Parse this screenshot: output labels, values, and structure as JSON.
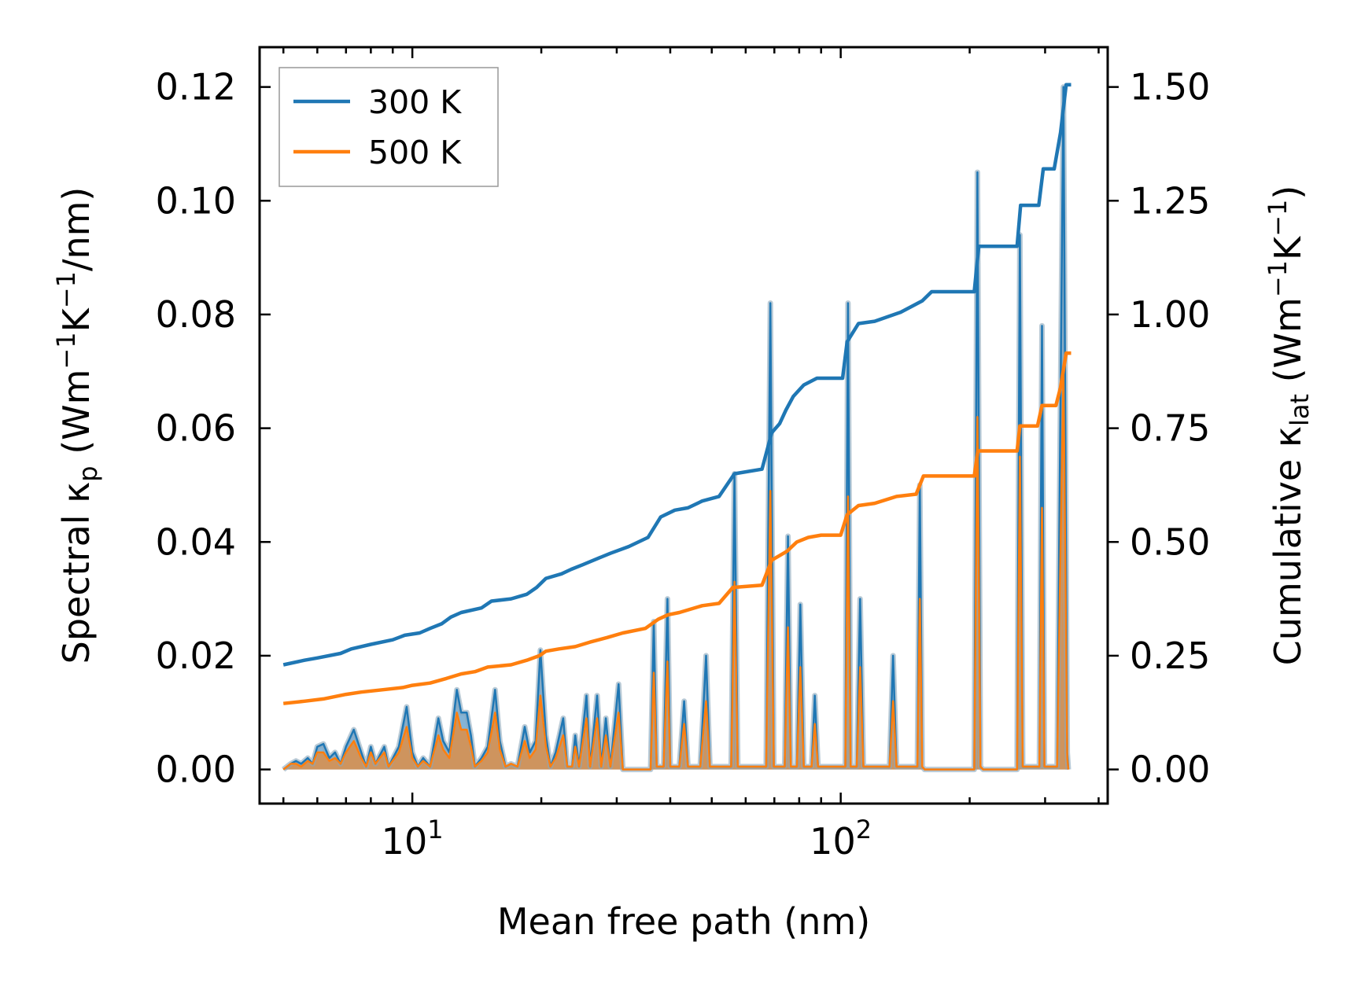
{
  "chart_data": {
    "type": "line",
    "xlabel": "Mean free path (nm)",
    "xscale": "log",
    "xlim": [
      4.4,
      420
    ],
    "ylabel_left": {
      "prefix": "Spectral κ",
      "sub": "p",
      "units": " (Wm",
      "sup1": "−1",
      "mid": "K",
      "sup2": "−1",
      "tail": "/nm)"
    },
    "ylabel_right": {
      "prefix": "Cumulative κ",
      "sub": "lat",
      "units": " (Wm",
      "sup1": "−1",
      "mid": "K",
      "sup2": "−1",
      "tail": ")"
    },
    "ylim_left": [
      -0.006,
      0.127
    ],
    "ylim_right": [
      -0.075,
      1.5875
    ],
    "x_ticks": [
      {
        "value": 10,
        "base": "10",
        "exp": "1"
      },
      {
        "value": 100,
        "base": "10",
        "exp": "2"
      }
    ],
    "y_left_ticks": [
      "0.00",
      "0.02",
      "0.04",
      "0.06",
      "0.08",
      "0.10",
      "0.12"
    ],
    "y_right_ticks": [
      "0.00",
      "0.25",
      "0.50",
      "0.75",
      "1.00",
      "1.25",
      "1.50"
    ],
    "legend": {
      "location": "upper-left",
      "entries": [
        "300 K",
        "500 K"
      ]
    },
    "colors": {
      "s300": "#1f77b4",
      "s500": "#ff7f0e",
      "fill": "#b99a6b",
      "fillEdge": "#9aa3a8"
    },
    "spectral_300": [
      [
        5.0,
        0
      ],
      [
        5.2,
        0.001
      ],
      [
        5.35,
        0.0015
      ],
      [
        5.5,
        0.001
      ],
      [
        5.7,
        0.002
      ],
      [
        5.85,
        0.001
      ],
      [
        6.0,
        0.004
      ],
      [
        6.2,
        0.0045
      ],
      [
        6.4,
        0.002
      ],
      [
        6.6,
        0.003
      ],
      [
        6.8,
        0.001
      ],
      [
        7.0,
        0.004
      ],
      [
        7.3,
        0.007
      ],
      [
        7.6,
        0.003
      ],
      [
        7.8,
        0.0005
      ],
      [
        8.0,
        0.004
      ],
      [
        8.2,
        0.001
      ],
      [
        8.6,
        0.004
      ],
      [
        8.8,
        0.0005
      ],
      [
        9.3,
        0.004
      ],
      [
        9.7,
        0.011
      ],
      [
        10.0,
        0.003
      ],
      [
        10.3,
        0.0005
      ],
      [
        10.6,
        0.002
      ],
      [
        11.0,
        0.0005
      ],
      [
        11.5,
        0.009
      ],
      [
        11.8,
        0.005
      ],
      [
        12.2,
        0.003
      ],
      [
        12.7,
        0.014
      ],
      [
        13.0,
        0.01
      ],
      [
        13.4,
        0.01
      ],
      [
        13.7,
        0.006
      ],
      [
        14.0,
        0.0005
      ],
      [
        14.5,
        0.002
      ],
      [
        15.0,
        0.004
      ],
      [
        15.6,
        0.014
      ],
      [
        16.0,
        0.005
      ],
      [
        16.5,
        0.0005
      ],
      [
        17.0,
        0.001
      ],
      [
        17.6,
        0.0005
      ],
      [
        18.3,
        0.0075
      ],
      [
        18.8,
        0.003
      ],
      [
        19.4,
        0.005
      ],
      [
        19.9,
        0.021
      ],
      [
        20.5,
        0.006
      ],
      [
        21.0,
        0.0005
      ],
      [
        21.6,
        0.003
      ],
      [
        22.5,
        0.009
      ],
      [
        23.0,
        0.0005
      ],
      [
        23.6,
        0.0005
      ],
      [
        24.0,
        0.006
      ],
      [
        24.5,
        0.0005
      ],
      [
        25.5,
        0.013
      ],
      [
        26.0,
        0.0005
      ],
      [
        27.0,
        0.013
      ],
      [
        27.6,
        0.0005
      ],
      [
        28.3,
        0.009
      ],
      [
        29.0,
        0.0005
      ],
      [
        30.3,
        0.015
      ],
      [
        31.0,
        0
      ],
      [
        36.0,
        0
      ],
      [
        36.6,
        0.026
      ],
      [
        37.2,
        0.0005
      ],
      [
        38.6,
        0.0005
      ],
      [
        39.4,
        0.03
      ],
      [
        40.0,
        0.0005
      ],
      [
        42.0,
        0.0005
      ],
      [
        43.1,
        0.012
      ],
      [
        44.0,
        0.0005
      ],
      [
        47.0,
        0.0005
      ],
      [
        48.5,
        0.02
      ],
      [
        49.5,
        0.0005
      ],
      [
        55.5,
        0.0005
      ],
      [
        56.5,
        0.052
      ],
      [
        57.5,
        0.0005
      ],
      [
        67.0,
        0.0005
      ],
      [
        68.5,
        0.082
      ],
      [
        69.8,
        0.0005
      ],
      [
        74.0,
        0.0005
      ],
      [
        75.3,
        0.041
      ],
      [
        76.5,
        0.0005
      ],
      [
        79.0,
        0.0005
      ],
      [
        80.5,
        0.029
      ],
      [
        82.0,
        0.0005
      ],
      [
        85.5,
        0.0005
      ],
      [
        87.0,
        0.013
      ],
      [
        88.5,
        0.0005
      ],
      [
        102.5,
        0.0005
      ],
      [
        104.0,
        0.082
      ],
      [
        105.5,
        0.0005
      ],
      [
        109.0,
        0.0005
      ],
      [
        111.0,
        0.03
      ],
      [
        113.0,
        0.0005
      ],
      [
        130.0,
        0.0005
      ],
      [
        132.5,
        0.02
      ],
      [
        135.0,
        0.0005
      ],
      [
        151.0,
        0.0005
      ],
      [
        153.0,
        0.05
      ],
      [
        155.0,
        0.0005
      ],
      [
        157.0,
        0
      ],
      [
        205.0,
        0
      ],
      [
        208.5,
        0.105
      ],
      [
        212.0,
        0.0005
      ],
      [
        215.0,
        0
      ],
      [
        258.0,
        0
      ],
      [
        262.0,
        0.094
      ],
      [
        266.0,
        0.0005
      ],
      [
        291.0,
        0.0005
      ],
      [
        295.0,
        0.078
      ],
      [
        299.0,
        0.0005
      ],
      [
        320.0,
        0.0005
      ],
      [
        331.0,
        0.12
      ],
      [
        338.0,
        0.003
      ],
      [
        340.0,
        0
      ]
    ],
    "spectral_500": [
      [
        5.0,
        0
      ],
      [
        5.2,
        0.001
      ],
      [
        5.35,
        0.001
      ],
      [
        5.5,
        0.0005
      ],
      [
        5.7,
        0.0015
      ],
      [
        5.85,
        0.001
      ],
      [
        6.0,
        0.003
      ],
      [
        6.2,
        0.003
      ],
      [
        6.4,
        0.0015
      ],
      [
        6.6,
        0.002
      ],
      [
        6.8,
        0.001
      ],
      [
        7.0,
        0.003
      ],
      [
        7.3,
        0.005
      ],
      [
        7.6,
        0.002
      ],
      [
        7.8,
        0.0005
      ],
      [
        8.0,
        0.003
      ],
      [
        8.2,
        0.001
      ],
      [
        8.6,
        0.003
      ],
      [
        8.8,
        0.0005
      ],
      [
        9.3,
        0.003
      ],
      [
        9.7,
        0.0075
      ],
      [
        10.0,
        0.002
      ],
      [
        10.3,
        0.0005
      ],
      [
        10.6,
        0.0015
      ],
      [
        11.0,
        0.0005
      ],
      [
        11.5,
        0.006
      ],
      [
        11.8,
        0.0035
      ],
      [
        12.2,
        0.002
      ],
      [
        12.7,
        0.01
      ],
      [
        13.0,
        0.007
      ],
      [
        13.4,
        0.007
      ],
      [
        13.7,
        0.004
      ],
      [
        14.0,
        0.0005
      ],
      [
        14.5,
        0.0015
      ],
      [
        15.0,
        0.003
      ],
      [
        15.6,
        0.01
      ],
      [
        16.0,
        0.0035
      ],
      [
        16.5,
        0.0005
      ],
      [
        17.0,
        0.001
      ],
      [
        17.6,
        0.0005
      ],
      [
        18.3,
        0.005
      ],
      [
        18.8,
        0.002
      ],
      [
        19.4,
        0.0035
      ],
      [
        19.9,
        0.013
      ],
      [
        20.5,
        0.004
      ],
      [
        21.0,
        0.0005
      ],
      [
        21.6,
        0.002
      ],
      [
        22.5,
        0.006
      ],
      [
        23.0,
        0.0005
      ],
      [
        23.6,
        0.0005
      ],
      [
        24.0,
        0.004
      ],
      [
        24.5,
        0.0005
      ],
      [
        25.5,
        0.009
      ],
      [
        26.0,
        0.0005
      ],
      [
        27.0,
        0.009
      ],
      [
        27.6,
        0.0005
      ],
      [
        28.3,
        0.006
      ],
      [
        29.0,
        0.0005
      ],
      [
        30.3,
        0.01
      ],
      [
        31.0,
        0
      ],
      [
        36.0,
        0
      ],
      [
        36.6,
        0.017
      ],
      [
        37.2,
        0.0005
      ],
      [
        38.6,
        0.0005
      ],
      [
        39.4,
        0.019
      ],
      [
        40.0,
        0.0005
      ],
      [
        42.0,
        0.0005
      ],
      [
        43.1,
        0.008
      ],
      [
        44.0,
        0.0005
      ],
      [
        47.0,
        0.0005
      ],
      [
        48.5,
        0.012
      ],
      [
        49.5,
        0.0005
      ],
      [
        55.5,
        0.0005
      ],
      [
        56.5,
        0.033
      ],
      [
        57.5,
        0.0005
      ],
      [
        67.0,
        0.0005
      ],
      [
        68.5,
        0.049
      ],
      [
        69.8,
        0.0005
      ],
      [
        74.0,
        0.0005
      ],
      [
        75.3,
        0.025
      ],
      [
        76.5,
        0.0005
      ],
      [
        79.0,
        0.0005
      ],
      [
        80.5,
        0.018
      ],
      [
        82.0,
        0.0005
      ],
      [
        85.5,
        0.0005
      ],
      [
        87.0,
        0.008
      ],
      [
        88.5,
        0.0005
      ],
      [
        102.5,
        0.0005
      ],
      [
        104.0,
        0.048
      ],
      [
        105.5,
        0.0005
      ],
      [
        109.0,
        0.0005
      ],
      [
        111.0,
        0.018
      ],
      [
        113.0,
        0.0005
      ],
      [
        130.0,
        0.0005
      ],
      [
        132.5,
        0.012
      ],
      [
        135.0,
        0.0005
      ],
      [
        151.0,
        0.0005
      ],
      [
        153.0,
        0.03
      ],
      [
        155.0,
        0.0005
      ],
      [
        157.0,
        0
      ],
      [
        205.0,
        0
      ],
      [
        208.5,
        0.062
      ],
      [
        212.0,
        0.0005
      ],
      [
        215.0,
        0
      ],
      [
        258.0,
        0
      ],
      [
        262.0,
        0.055
      ],
      [
        266.0,
        0.0005
      ],
      [
        291.0,
        0.0005
      ],
      [
        295.0,
        0.046
      ],
      [
        299.0,
        0.0005
      ],
      [
        320.0,
        0.0005
      ],
      [
        331.0,
        0.07
      ],
      [
        338.0,
        0.002
      ],
      [
        340.0,
        0
      ]
    ],
    "cumulative_300": [
      [
        5.0,
        0.23
      ],
      [
        5.6,
        0.24
      ],
      [
        6.0,
        0.245
      ],
      [
        6.8,
        0.255
      ],
      [
        7.2,
        0.265
      ],
      [
        8.0,
        0.275
      ],
      [
        9.0,
        0.285
      ],
      [
        9.6,
        0.295
      ],
      [
        10.4,
        0.3
      ],
      [
        11.0,
        0.31
      ],
      [
        11.7,
        0.32
      ],
      [
        12.3,
        0.335
      ],
      [
        13.0,
        0.345
      ],
      [
        14.5,
        0.355
      ],
      [
        15.3,
        0.37
      ],
      [
        17.0,
        0.375
      ],
      [
        18.5,
        0.385
      ],
      [
        19.5,
        0.4
      ],
      [
        20.5,
        0.42
      ],
      [
        22.3,
        0.43
      ],
      [
        23.5,
        0.44
      ],
      [
        25.0,
        0.45
      ],
      [
        26.5,
        0.46
      ],
      [
        29.0,
        0.475
      ],
      [
        32.0,
        0.49
      ],
      [
        35.5,
        0.51
      ],
      [
        38.0,
        0.555
      ],
      [
        41.0,
        0.57
      ],
      [
        44.0,
        0.575
      ],
      [
        47.5,
        0.59
      ],
      [
        52.0,
        0.6
      ],
      [
        56.5,
        0.65
      ],
      [
        65.5,
        0.66
      ],
      [
        69.0,
        0.74
      ],
      [
        72.0,
        0.76
      ],
      [
        74.5,
        0.79
      ],
      [
        77.5,
        0.82
      ],
      [
        82.0,
        0.845
      ],
      [
        88.0,
        0.86
      ],
      [
        101.0,
        0.86
      ],
      [
        103.5,
        0.94
      ],
      [
        110.0,
        0.98
      ],
      [
        120.0,
        0.985
      ],
      [
        138.0,
        1.005
      ],
      [
        155.0,
        1.03
      ],
      [
        163.0,
        1.05
      ],
      [
        205.0,
        1.05
      ],
      [
        210.0,
        1.15
      ],
      [
        258.0,
        1.15
      ],
      [
        263.0,
        1.24
      ],
      [
        290.0,
        1.24
      ],
      [
        297.0,
        1.32
      ],
      [
        315.0,
        1.32
      ],
      [
        326.0,
        1.4
      ],
      [
        336.0,
        1.505
      ],
      [
        345.0,
        1.505
      ]
    ],
    "cumulative_500": [
      [
        5.0,
        0.145
      ],
      [
        5.6,
        0.15
      ],
      [
        6.2,
        0.155
      ],
      [
        7.0,
        0.165
      ],
      [
        7.6,
        0.17
      ],
      [
        8.5,
        0.175
      ],
      [
        9.5,
        0.18
      ],
      [
        10.0,
        0.185
      ],
      [
        11.0,
        0.19
      ],
      [
        12.0,
        0.2
      ],
      [
        13.0,
        0.21
      ],
      [
        14.0,
        0.215
      ],
      [
        15.0,
        0.225
      ],
      [
        17.0,
        0.23
      ],
      [
        18.5,
        0.24
      ],
      [
        19.8,
        0.25
      ],
      [
        20.5,
        0.26
      ],
      [
        22.0,
        0.265
      ],
      [
        24.0,
        0.27
      ],
      [
        26.0,
        0.28
      ],
      [
        28.5,
        0.29
      ],
      [
        31.0,
        0.3
      ],
      [
        35.0,
        0.31
      ],
      [
        37.5,
        0.33
      ],
      [
        39.5,
        0.34
      ],
      [
        42.0,
        0.345
      ],
      [
        47.5,
        0.36
      ],
      [
        52.0,
        0.365
      ],
      [
        56.0,
        0.4
      ],
      [
        65.5,
        0.405
      ],
      [
        69.0,
        0.46
      ],
      [
        72.0,
        0.47
      ],
      [
        75.0,
        0.48
      ],
      [
        79.0,
        0.5
      ],
      [
        84.0,
        0.51
      ],
      [
        90.0,
        0.515
      ],
      [
        100.0,
        0.515
      ],
      [
        103.5,
        0.56
      ],
      [
        110.0,
        0.58
      ],
      [
        120.0,
        0.585
      ],
      [
        135.0,
        0.6
      ],
      [
        150.0,
        0.605
      ],
      [
        156.0,
        0.645
      ],
      [
        205.0,
        0.645
      ],
      [
        209.0,
        0.7
      ],
      [
        258.0,
        0.7
      ],
      [
        262.0,
        0.755
      ],
      [
        288.0,
        0.755
      ],
      [
        295.0,
        0.8
      ],
      [
        318.0,
        0.8
      ],
      [
        326.0,
        0.84
      ],
      [
        336.0,
        0.915
      ],
      [
        345.0,
        0.915
      ]
    ]
  }
}
